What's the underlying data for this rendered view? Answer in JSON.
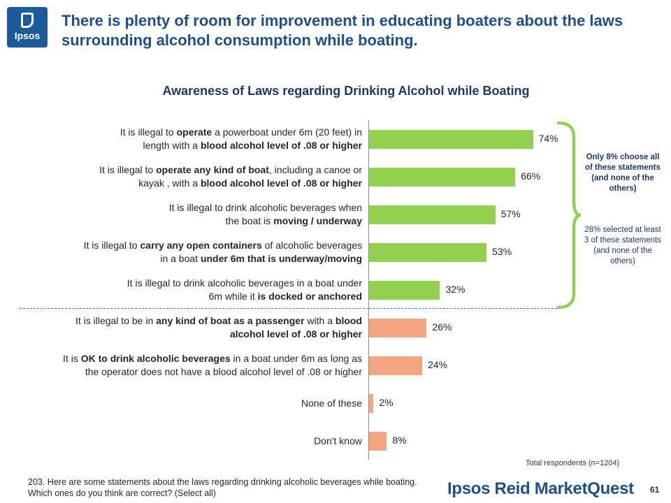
{
  "logo": {
    "text": "Ipsos"
  },
  "headline": "There is plenty of room for improvement in educating boaters about the laws surrounding alcohol consumption while boating.",
  "chart_data": {
    "type": "bar",
    "orientation": "horizontal",
    "title": "Awareness of Laws regarding Drinking Alcohol while Boating",
    "xlim": [
      0,
      100
    ],
    "unit": "%",
    "categories": [
      [
        {
          "t": "It is illegal to "
        },
        {
          "t": "operate",
          "b": true
        },
        {
          "t": " a powerboat under 6m (20 feet) in"
        },
        {
          "br": true
        },
        {
          "t": "length with a "
        },
        {
          "t": "blood alcohol level of .08 or higher",
          "b": true
        }
      ],
      [
        {
          "t": "It is illegal to "
        },
        {
          "t": "operate any kind of boat",
          "b": true
        },
        {
          "t": ", including a canoe or"
        },
        {
          "br": true
        },
        {
          "t": "kayak , with a "
        },
        {
          "t": "blood alcohol level of .08 or higher",
          "b": true
        }
      ],
      [
        {
          "t": "It is illegal to drink alcoholic beverages when"
        },
        {
          "br": true
        },
        {
          "t": "the boat is "
        },
        {
          "t": "moving / underway",
          "b": true
        }
      ],
      [
        {
          "t": "It is illegal to "
        },
        {
          "t": "carry any open containers",
          "b": true
        },
        {
          "t": " of alcoholic beverages"
        },
        {
          "br": true
        },
        {
          "t": "in a boat "
        },
        {
          "t": "under 6m that is underway/moving",
          "b": true
        }
      ],
      [
        {
          "t": "It is illegal to drink alcoholic beverages in a boat under"
        },
        {
          "br": true
        },
        {
          "t": "6m while it "
        },
        {
          "t": "is docked or anchored",
          "b": true
        }
      ],
      [
        {
          "t": "It is illegal to be in "
        },
        {
          "t": "any kind of boat as a passenger",
          "b": true
        },
        {
          "t": " with a "
        },
        {
          "t": "blood",
          "b": true
        },
        {
          "br": true
        },
        {
          "t": "alcohol level of .08 or higher",
          "b": true
        }
      ],
      [
        {
          "t": "It is "
        },
        {
          "t": "OK to drink alcoholic beverages",
          "b": true
        },
        {
          "t": " in a boat under 6m as long as"
        },
        {
          "br": true
        },
        {
          "t": "the operator does not have a blood alcohol level of .08 or higher"
        }
      ],
      [
        {
          "t": "None of these"
        }
      ],
      [
        {
          "t": "Don't know"
        }
      ]
    ],
    "values": [
      74,
      66,
      57,
      53,
      32,
      26,
      24,
      2,
      8
    ],
    "value_labels": [
      "74%",
      "66%",
      "57%",
      "53%",
      "32%",
      "26%",
      "24%",
      "2%",
      "8%"
    ],
    "colors": [
      "#92d050",
      "#92d050",
      "#92d050",
      "#92d050",
      "#92d050",
      "#f4a582",
      "#f4a582",
      "#f4a582",
      "#f4a582"
    ],
    "group_divider_after_index": 4
  },
  "brace_note": {
    "bold_text": "Only 8% choose all of these statements (and none of the others)",
    "text": "28% selected at least 3 of these statements (and none of the others)"
  },
  "total": "Total respondents (n=1204)",
  "footnote": "203. Here are some statements about the laws regarding drinking alcoholic beverages while boating. Which ones do you think are correct? (Select all)",
  "brand": "Ipsos Reid MarketQuest",
  "page_number": "61",
  "accent_color": "#1f4e8c"
}
